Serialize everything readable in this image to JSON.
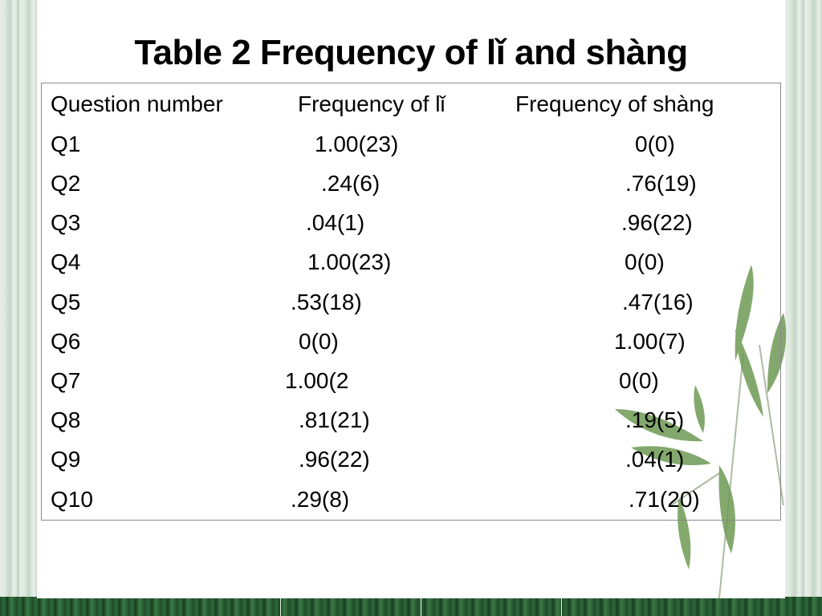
{
  "title": "Table 2 Frequency of lǐ and shàng",
  "table": {
    "headers": [
      "Question number",
      "Frequency of lǐ",
      "Frequency of shàng"
    ],
    "rows": [
      {
        "question": "Q1",
        "li": "1.00(23)",
        "shang": "0(0)"
      },
      {
        "question": "Q2",
        "li": ".24(6)",
        "shang": ".76(19)"
      },
      {
        "question": "Q3",
        "li": ".04(1)",
        "shang": ".96(22)"
      },
      {
        "question": "Q4",
        "li": "1.00(23)",
        "shang": "0(0)"
      },
      {
        "question": "Q5",
        "li": ".53(18)",
        "shang": ".47(16)"
      },
      {
        "question": "Q6",
        "li": "0(0)",
        "shang": "1.00(7)"
      },
      {
        "question": "Q7",
        "li": "1.00(2",
        "shang": "0(0)"
      },
      {
        "question": "Q8",
        "li": ".81(21)",
        "shang": ".19(5)"
      },
      {
        "question": "Q9",
        "li": ".96(22)",
        "shang": ".04(1)"
      },
      {
        "question": "Q10",
        "li": ".29(8)",
        "shang": ".71(20)"
      }
    ]
  },
  "decoration": {
    "bamboo_icon": "bamboo-leaves-icon",
    "colors": {
      "frame_green": "#2f5a36",
      "leaf_green": "#6e9a54",
      "text": "#000000"
    }
  }
}
